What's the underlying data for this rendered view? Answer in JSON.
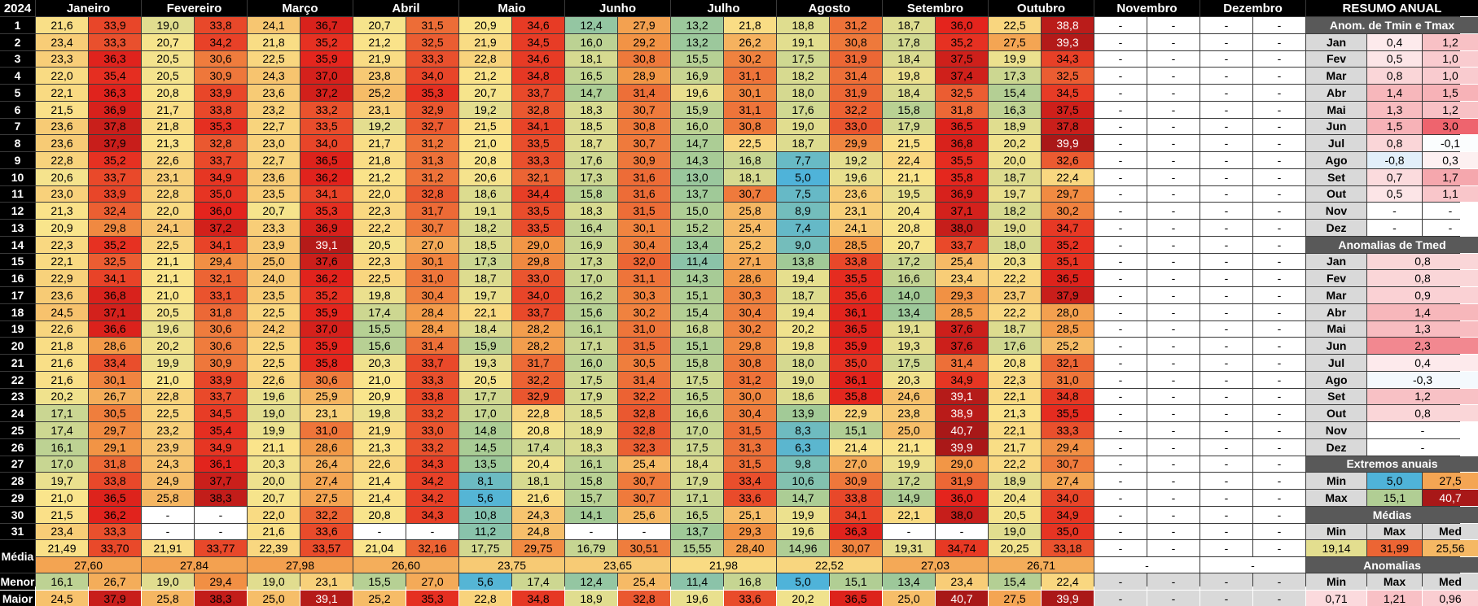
{
  "year": "2024",
  "months": [
    "Janeiro",
    "Fevereiro",
    "Março",
    "Abril",
    "Maio",
    "Junho",
    "Julho",
    "Agosto",
    "Setembro",
    "Outubro",
    "Novembro",
    "Dezembro"
  ],
  "summary_title": "RESUMO ANUAL",
  "days": [
    "1",
    "2",
    "3",
    "4",
    "5",
    "6",
    "7",
    "8",
    "9",
    "10",
    "11",
    "12",
    "13",
    "14",
    "15",
    "16",
    "17",
    "18",
    "19",
    "20",
    "21",
    "22",
    "23",
    "24",
    "25",
    "26",
    "27",
    "28",
    "29",
    "30",
    "31"
  ],
  "tmin": [
    [
      "21,6",
      "23,4",
      "23,3",
      "22,0",
      "22,1",
      "21,5",
      "23,6",
      "23,6",
      "22,8",
      "20,6",
      "23,0",
      "21,3",
      "20,9",
      "22,3",
      "22,1",
      "22,9",
      "23,6",
      "24,5",
      "22,6",
      "21,8",
      "21,6",
      "21,6",
      "20,2",
      "17,1",
      "17,4",
      "16,1",
      "17,0",
      "19,7",
      "21,0",
      "21,5",
      "23,4"
    ],
    [
      "19,0",
      "20,7",
      "20,5",
      "20,5",
      "20,8",
      "21,7",
      "21,8",
      "21,3",
      "22,6",
      "23,1",
      "22,8",
      "22,0",
      "24,1",
      "22,5",
      "21,1",
      "21,1",
      "21,0",
      "20,5",
      "19,6",
      "20,2",
      "19,9",
      "21,0",
      "22,8",
      "22,5",
      "23,2",
      "23,9",
      "24,3",
      "24,9",
      "25,8",
      "-",
      "-"
    ],
    [
      "24,1",
      "21,8",
      "22,5",
      "24,3",
      "23,6",
      "23,2",
      "22,7",
      "23,0",
      "22,7",
      "23,6",
      "23,5",
      "20,7",
      "23,3",
      "23,9",
      "25,0",
      "24,0",
      "23,5",
      "22,5",
      "24,2",
      "22,5",
      "22,5",
      "22,6",
      "19,6",
      "19,0",
      "19,9",
      "21,1",
      "20,3",
      "20,0",
      "20,7",
      "22,0",
      "21,6"
    ],
    [
      "20,7",
      "21,2",
      "21,9",
      "23,8",
      "25,2",
      "23,1",
      "19,2",
      "21,7",
      "21,8",
      "21,2",
      "22,0",
      "22,3",
      "22,2",
      "20,5",
      "22,3",
      "22,5",
      "19,8",
      "17,4",
      "15,5",
      "15,6",
      "20,3",
      "21,0",
      "20,9",
      "19,8",
      "21,9",
      "21,3",
      "22,6",
      "21,4",
      "21,4",
      "20,8",
      "-"
    ],
    [
      "20,9",
      "21,9",
      "22,8",
      "21,2",
      "20,7",
      "19,2",
      "21,5",
      "21,0",
      "20,8",
      "20,6",
      "18,6",
      "19,1",
      "18,2",
      "18,5",
      "17,3",
      "18,7",
      "19,7",
      "22,1",
      "18,4",
      "15,9",
      "19,3",
      "20,5",
      "17,7",
      "17,0",
      "14,8",
      "14,5",
      "13,5",
      "8,1",
      "5,6",
      "10,8",
      "11,2"
    ],
    [
      "12,4",
      "16,0",
      "18,1",
      "16,5",
      "14,7",
      "18,3",
      "18,5",
      "18,7",
      "17,6",
      "17,3",
      "15,8",
      "18,3",
      "16,4",
      "16,9",
      "17,3",
      "17,0",
      "16,2",
      "15,6",
      "16,1",
      "17,1",
      "16,0",
      "17,5",
      "17,9",
      "18,5",
      "18,9",
      "18,3",
      "16,1",
      "15,8",
      "15,7",
      "14,1",
      "-"
    ],
    [
      "13,2",
      "13,2",
      "15,5",
      "16,9",
      "19,6",
      "15,9",
      "16,0",
      "14,7",
      "14,3",
      "13,0",
      "13,7",
      "15,0",
      "15,2",
      "13,4",
      "11,4",
      "14,3",
      "15,1",
      "15,4",
      "16,8",
      "15,1",
      "15,8",
      "17,5",
      "16,5",
      "16,6",
      "17,0",
      "17,5",
      "18,4",
      "17,9",
      "17,1",
      "16,5",
      "13,7"
    ],
    [
      "18,8",
      "19,1",
      "17,5",
      "18,2",
      "18,0",
      "17,6",
      "19,0",
      "18,7",
      "7,7",
      "5,0",
      "7,5",
      "8,9",
      "7,4",
      "9,0",
      "13,8",
      "19,4",
      "18,7",
      "19,4",
      "20,2",
      "19,8",
      "18,0",
      "19,0",
      "18,6",
      "13,9",
      "8,3",
      "6,3",
      "9,8",
      "10,6",
      "14,7",
      "19,9",
      "19,6"
    ],
    [
      "18,7",
      "17,8",
      "18,4",
      "19,8",
      "18,4",
      "15,8",
      "17,9",
      "21,5",
      "22,4",
      "21,1",
      "19,5",
      "20,4",
      "20,8",
      "20,7",
      "17,2",
      "16,6",
      "14,0",
      "13,4",
      "19,1",
      "19,3",
      "17,5",
      "20,3",
      "24,6",
      "23,8",
      "25,0",
      "21,1",
      "19,9",
      "17,2",
      "14,9",
      "22,1",
      "-"
    ],
    [
      "22,5",
      "27,5",
      "19,9",
      "17,3",
      "15,4",
      "16,3",
      "18,9",
      "20,2",
      "20,0",
      "18,7",
      "19,7",
      "18,2",
      "19,0",
      "18,0",
      "20,3",
      "22,2",
      "23,7",
      "22,2",
      "18,7",
      "17,6",
      "20,8",
      "22,3",
      "22,1",
      "21,3",
      "22,1",
      "21,7",
      "22,2",
      "18,9",
      "20,4",
      "20,5",
      "19,0"
    ],
    [
      "-",
      "-",
      "-",
      "-",
      "-",
      "-",
      "-",
      "-",
      "-",
      "-",
      "-",
      "-",
      "-",
      "-",
      "-",
      "-",
      "-",
      "-",
      "-",
      "-",
      "-",
      "-",
      "-",
      "-",
      "-",
      "-",
      "-",
      "-",
      "-",
      "-",
      "-"
    ],
    [
      "-",
      "-",
      "-",
      "-",
      "-",
      "-",
      "-",
      "-",
      "-",
      "-",
      "-",
      "-",
      "-",
      "-",
      "-",
      "-",
      "-",
      "-",
      "-",
      "-",
      "-",
      "-",
      "-",
      "-",
      "-",
      "-",
      "-",
      "-",
      "-",
      "-",
      "-"
    ]
  ],
  "tmax": [
    [
      "33,9",
      "33,3",
      "36,3",
      "35,4",
      "36,3",
      "36,9",
      "37,8",
      "37,9",
      "35,2",
      "33,7",
      "33,9",
      "32,4",
      "29,8",
      "35,2",
      "32,5",
      "34,1",
      "36,8",
      "37,1",
      "36,6",
      "28,6",
      "33,4",
      "30,1",
      "26,7",
      "30,5",
      "29,7",
      "29,1",
      "31,8",
      "33,8",
      "36,5",
      "36,2",
      "33,3"
    ],
    [
      "33,8",
      "34,2",
      "30,6",
      "30,9",
      "33,9",
      "33,8",
      "35,3",
      "32,8",
      "33,7",
      "34,9",
      "35,0",
      "36,0",
      "37,2",
      "34,1",
      "29,4",
      "32,1",
      "33,1",
      "31,8",
      "30,6",
      "30,6",
      "30,9",
      "33,9",
      "33,7",
      "34,5",
      "35,4",
      "34,9",
      "36,1",
      "37,7",
      "38,3",
      "-",
      "-"
    ],
    [
      "36,7",
      "35,2",
      "35,9",
      "37,0",
      "37,2",
      "33,2",
      "33,5",
      "34,0",
      "36,5",
      "36,2",
      "34,1",
      "35,3",
      "36,9",
      "39,1",
      "37,6",
      "36,2",
      "35,2",
      "35,9",
      "37,0",
      "35,9",
      "35,8",
      "30,6",
      "25,9",
      "23,1",
      "31,0",
      "28,6",
      "26,4",
      "27,4",
      "27,5",
      "32,2",
      "33,6"
    ],
    [
      "31,5",
      "32,5",
      "33,3",
      "34,0",
      "35,3",
      "32,9",
      "32,7",
      "31,2",
      "31,3",
      "31,2",
      "32,8",
      "31,7",
      "30,7",
      "27,0",
      "30,1",
      "31,0",
      "30,4",
      "28,4",
      "28,4",
      "31,4",
      "33,7",
      "33,3",
      "33,8",
      "33,2",
      "33,0",
      "33,2",
      "34,3",
      "34,2",
      "34,2",
      "34,3",
      "-"
    ],
    [
      "34,6",
      "34,5",
      "34,6",
      "34,8",
      "33,7",
      "32,8",
      "34,1",
      "33,5",
      "33,3",
      "32,1",
      "34,4",
      "33,5",
      "33,5",
      "29,0",
      "29,8",
      "33,0",
      "34,0",
      "33,7",
      "28,2",
      "28,2",
      "31,7",
      "32,2",
      "32,9",
      "22,8",
      "20,8",
      "17,4",
      "20,4",
      "18,1",
      "21,6",
      "24,3",
      "24,8"
    ],
    [
      "27,9",
      "29,2",
      "30,8",
      "28,9",
      "31,4",
      "30,7",
      "30,8",
      "30,7",
      "30,9",
      "31,6",
      "31,6",
      "31,5",
      "30,1",
      "30,4",
      "32,0",
      "31,1",
      "30,3",
      "30,2",
      "31,0",
      "31,5",
      "30,5",
      "31,4",
      "32,2",
      "32,8",
      "32,8",
      "32,3",
      "25,4",
      "30,7",
      "30,7",
      "25,6",
      "-"
    ],
    [
      "21,8",
      "26,2",
      "30,2",
      "31,1",
      "30,1",
      "31,1",
      "30,8",
      "22,5",
      "16,8",
      "18,1",
      "30,7",
      "25,8",
      "25,4",
      "25,2",
      "27,1",
      "28,6",
      "30,3",
      "30,4",
      "30,2",
      "29,8",
      "30,8",
      "31,2",
      "30,0",
      "30,4",
      "31,5",
      "31,3",
      "31,5",
      "33,4",
      "33,6",
      "25,1",
      "29,3"
    ],
    [
      "31,2",
      "30,8",
      "31,9",
      "31,4",
      "31,9",
      "32,2",
      "33,0",
      "29,9",
      "19,2",
      "19,6",
      "23,6",
      "23,1",
      "24,1",
      "28,5",
      "33,8",
      "35,5",
      "35,6",
      "36,1",
      "36,5",
      "35,9",
      "35,0",
      "36,1",
      "35,8",
      "22,9",
      "15,1",
      "21,4",
      "27,0",
      "30,9",
      "33,8",
      "34,1",
      "36,3"
    ],
    [
      "36,0",
      "35,2",
      "37,5",
      "37,4",
      "32,5",
      "31,8",
      "36,5",
      "36,8",
      "35,5",
      "35,8",
      "36,9",
      "37,1",
      "38,0",
      "33,7",
      "25,4",
      "23,4",
      "29,3",
      "28,5",
      "37,6",
      "37,6",
      "31,4",
      "34,9",
      "39,1",
      "38,9",
      "40,7",
      "39,9",
      "29,0",
      "31,9",
      "36,0",
      "38,0",
      "-"
    ],
    [
      "38,8",
      "39,3",
      "34,3",
      "32,5",
      "34,5",
      "37,5",
      "37,8",
      "39,9",
      "32,6",
      "22,4",
      "29,7",
      "30,2",
      "34,7",
      "35,2",
      "35,1",
      "36,5",
      "37,9",
      "28,0",
      "28,5",
      "25,2",
      "32,1",
      "31,0",
      "34,8",
      "35,5",
      "33,3",
      "29,4",
      "30,7",
      "27,4",
      "34,0",
      "34,9",
      "35,0"
    ],
    [
      "-",
      "-",
      "-",
      "-",
      "-",
      "-",
      "-",
      "-",
      "-",
      "-",
      "-",
      "-",
      "-",
      "-",
      "-",
      "-",
      "-",
      "-",
      "-",
      "-",
      "-",
      "-",
      "-",
      "-",
      "-",
      "-",
      "-",
      "-",
      "-",
      "-",
      "-"
    ],
    [
      "-",
      "-",
      "-",
      "-",
      "-",
      "-",
      "-",
      "-",
      "-",
      "-",
      "-",
      "-",
      "-",
      "-",
      "-",
      "-",
      "-",
      "-",
      "-",
      "-",
      "-",
      "-",
      "-",
      "-",
      "-",
      "-",
      "-",
      "-",
      "-",
      "-",
      "-"
    ]
  ],
  "media_label": "Média",
  "media_tmin": [
    "21,49",
    "21,91",
    "22,39",
    "21,04",
    "17,75",
    "16,79",
    "15,55",
    "14,96",
    "19,31",
    "20,25",
    "-",
    "-"
  ],
  "media_tmax": [
    "33,70",
    "33,77",
    "33,57",
    "32,16",
    "29,75",
    "30,51",
    "28,40",
    "30,07",
    "34,74",
    "33,18",
    "-",
    "-"
  ],
  "media_tmed": [
    "27,60",
    "27,84",
    "27,98",
    "26,60",
    "23,75",
    "23,65",
    "21,98",
    "22,52",
    "27,03",
    "26,71",
    "-",
    "-"
  ],
  "menor_label": "Menor",
  "menor_tmin": [
    "16,1",
    "19,0",
    "19,0",
    "15,5",
    "5,6",
    "12,4",
    "11,4",
    "5,0",
    "13,4",
    "15,4",
    "-",
    "-"
  ],
  "menor_tmax": [
    "26,7",
    "29,4",
    "23,1",
    "27,0",
    "17,4",
    "25,4",
    "16,8",
    "15,1",
    "23,4",
    "22,4",
    "-",
    "-"
  ],
  "maior_label": "Maior",
  "maior_tmin": [
    "24,5",
    "25,8",
    "25,0",
    "25,2",
    "22,8",
    "18,9",
    "19,6",
    "20,2",
    "25,0",
    "27,5",
    "-",
    "-"
  ],
  "maior_tmax": [
    "37,9",
    "38,3",
    "39,1",
    "35,3",
    "34,8",
    "32,8",
    "33,6",
    "36,5",
    "40,7",
    "39,9",
    "-",
    "-"
  ],
  "summary": {
    "anom_tmin_tmax_title": "Anom. de Tmin e Tmax",
    "month_abbr": [
      "Jan",
      "Fev",
      "Mar",
      "Abr",
      "Mai",
      "Jun",
      "Jul",
      "Ago",
      "Set",
      "Out",
      "Nov",
      "Dez"
    ],
    "anom_tmin": [
      "0,4",
      "0,5",
      "0,8",
      "1,4",
      "1,3",
      "1,5",
      "0,8",
      "-0,8",
      "0,7",
      "0,5",
      "-",
      "-"
    ],
    "anom_tmax": [
      "1,2",
      "1,0",
      "1,0",
      "1,5",
      "1,2",
      "3,0",
      "-0,1",
      "0,3",
      "1,7",
      "1,1",
      "-",
      "-"
    ],
    "anom_tmed_title": "Anomalias de Tmed",
    "anom_tmed": [
      "0,8",
      "0,8",
      "0,9",
      "1,4",
      "1,3",
      "2,3",
      "0,4",
      "-0,3",
      "1,2",
      "0,8",
      "-",
      "-"
    ],
    "extremos_title": "Extremos anuais",
    "min_label": "Min",
    "max_label": "Max",
    "med_label": "Med",
    "extremos_min": [
      "5,0",
      "27,5"
    ],
    "extremos_max": [
      "15,1",
      "40,7"
    ],
    "medias_title": "Médias",
    "medias_values": [
      "19,14",
      "31,99",
      "25,56"
    ],
    "anomalias_title": "Anomalias",
    "anomalias_values": [
      "0,71",
      "1,21",
      "0,96"
    ]
  },
  "colors": {
    "grid_line": "#3a3a3a",
    "header_bg": "#000000",
    "summary_header_bg": "#595959",
    "summary_label_bg": "#d9d9d9",
    "scale_cold": "#4fb3d9",
    "scale_cool": "#a3ca96",
    "scale_mild": "#fae58c",
    "scale_warm": "#f29646",
    "scale_hot": "#e4241d",
    "scale_extreme": "#a81818"
  }
}
